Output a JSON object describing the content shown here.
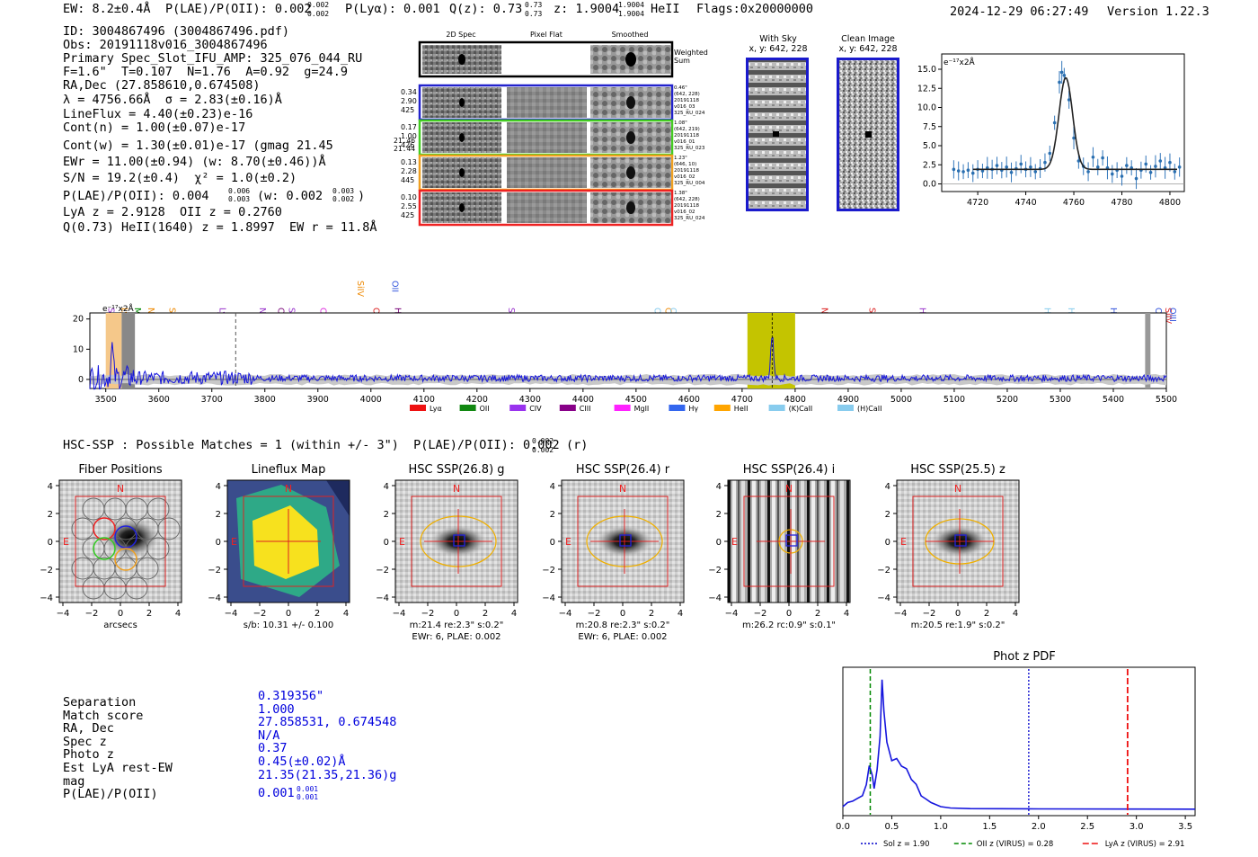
{
  "header": {
    "ew": "EW: 8.2±0.4Å",
    "plae": "P(LAE)/P(OII): 0.002",
    "plae_hi": "0.002",
    "plae_lo": "0.002",
    "plya": "P(Lyα): 0.001",
    "qz": "Q(z): 0.73",
    "qz_hi": "0.73",
    "qz_lo": "0.73",
    "z": "z: 1.9004",
    "z_hi": "1.9004",
    "z_lo": "1.9004",
    "z_line": "HeII",
    "flags": "Flags:0x20000000",
    "timestamp": "2024-12-29 06:27:49",
    "version": "Version 1.22.3"
  },
  "info": {
    "lines": [
      "ID: 3004867496 (3004867496.pdf)",
      "Obs: 20191118v016_3004867496",
      "Primary Spec_Slot_IFU_AMP: 325_076_044_RU",
      "F=1.6\"  T=0.107  N=1.76  A=0.92  g=24.9",
      "RA,Dec (27.858610,0.674508)",
      "λ = 4756.66Å  σ = 2.83(±0.16)Å",
      "LineFlux = 4.40(±0.23)e-16",
      "Cont(n) = 1.00(±0.07)e-17"
    ],
    "contw": "Cont(w) = 1.30(±0.01)e-17 (gmag 21.45",
    "contw_hi": "21.46",
    "contw_lo": "21.44",
    "ewr": "EWr = 11.00(±0.94) (w: 8.70(±0.46))Å",
    "sn": "S/N = 19.2(±0.4)  χ² = 1.0(±0.2)",
    "plae2": "P(LAE)/P(OII): 0.004",
    "plae2_hi": "0.006",
    "plae2_lo": "0.003",
    "plae2_w": "(w: 0.002",
    "plae2_w_hi": "0.003",
    "plae2_w_lo": "0.002",
    "lya_z": "LyA z = 2.9128  OII z = 0.2760",
    "q_line": "Q(0.73) HeII(1640) z = 1.8997  EW r = 11.8Å"
  },
  "cutouts": {
    "col_titles": [
      "2D Spec",
      "Pixel Flat",
      "Smoothed"
    ],
    "weighted_label": "Weighted Sum",
    "rows": [
      {
        "nums": [
          "0.34",
          "2.90",
          "425"
        ],
        "meta": [
          "0.46\"",
          "(642, 228)",
          "20191118",
          "v016_03",
          "325_RU_024"
        ],
        "color": "#2222cc"
      },
      {
        "nums": [
          "0.17",
          "1.00",
          "426"
        ],
        "meta": [
          "1.08\"",
          "(642, 219)",
          "20191118",
          "v016_01",
          "325_RU_023"
        ],
        "color": "#44cc22"
      },
      {
        "nums": [
          "0.13",
          "2.28",
          "445"
        ],
        "meta": [
          "1.23\"",
          "(646, 10)",
          "20191118",
          "v016_02",
          "325_RU_004"
        ],
        "color": "#f0a020"
      },
      {
        "nums": [
          "0.10",
          "2.55",
          "425"
        ],
        "meta": [
          "1.38\"",
          "(642, 228)",
          "20191118",
          "v016_02",
          "325_RU_024"
        ],
        "color": "#ee2222"
      }
    ]
  },
  "sky": {
    "with_sky_title": "With Sky",
    "with_sky_xy": "x, y: 642, 228",
    "clean_title": "Clean Image",
    "clean_xy": "x, y: 642, 228"
  },
  "zoom_plot": {
    "unit_label": "e⁻¹⁷x2Å",
    "x_ticks": [
      "4720",
      "4740",
      "4760",
      "4780",
      "4800"
    ],
    "y_ticks": [
      "0.0",
      "2.5",
      "5.0",
      "7.5",
      "10.0",
      "12.5",
      "15.0"
    ]
  },
  "spectrum": {
    "unit_label": "e⁻¹⁷x2Å",
    "x_ticks": [
      "3500",
      "3600",
      "3700",
      "3800",
      "3900",
      "4000",
      "4100",
      "4200",
      "4300",
      "4400",
      "4500",
      "4600",
      "4700",
      "4800",
      "4900",
      "5000",
      "5100",
      "5200",
      "5300",
      "5400",
      "5500"
    ],
    "y_ticks": [
      "0",
      "10",
      "20"
    ],
    "line_labels": [
      {
        "t": "SiIV",
        "c": "#9933cc"
      },
      {
        "t": "Lyα",
        "c": "#ee8800"
      },
      {
        "t": "MgII",
        "c": "#008800"
      },
      {
        "t": "NV",
        "c": "#ee8800"
      },
      {
        "t": "SiII",
        "c": "#ee8800"
      },
      {
        "t": "Lyα",
        "c": "#9933cc"
      },
      {
        "t": "NV",
        "c": "#9933cc"
      },
      {
        "t": "CIV",
        "c": "#770077"
      },
      {
        "t": "SiII",
        "c": "#9933cc"
      },
      {
        "t": "CII",
        "c": "#dd22dd"
      },
      {
        "t": "SiIV",
        "c": "#ee8800"
      },
      {
        "t": "OVI",
        "c": "#dd2222"
      },
      {
        "t": "OII",
        "c": "#3355dd"
      },
      {
        "t": "HeII",
        "c": "#770077"
      },
      {
        "t": "SiIV",
        "c": "#9933cc"
      },
      {
        "t": "OII",
        "c": "#88ccee"
      },
      {
        "t": "CIV",
        "c": "#ee8800"
      },
      {
        "t": "OII",
        "c": "#88ccee"
      },
      {
        "t": "NV",
        "c": "#dd2222"
      },
      {
        "t": "SiII",
        "c": "#dd2222"
      },
      {
        "t": "HeII",
        "c": "#9933cc"
      },
      {
        "t": "Hγ",
        "c": "#88ccee"
      },
      {
        "t": "Hγ",
        "c": "#88ccee"
      },
      {
        "t": "Hβ",
        "c": "#3355dd"
      },
      {
        "t": "OIII",
        "c": "#3355dd"
      },
      {
        "t": "SiIV",
        "c": "#dd2222"
      },
      {
        "t": "OIII",
        "c": "#3355dd"
      }
    ],
    "legend": [
      {
        "t": "Lyα",
        "c": "#ee1111"
      },
      {
        "t": "OII",
        "c": "#118811"
      },
      {
        "t": "CIV",
        "c": "#9933ee"
      },
      {
        "t": "CIII",
        "c": "#880088"
      },
      {
        "t": "MgII",
        "c": "#ff22ff"
      },
      {
        "t": "Hγ",
        "c": "#3366ee"
      },
      {
        "t": "HeII",
        "c": "#ffa500"
      },
      {
        "t": "(K)CaII",
        "c": "#88ccee"
      },
      {
        "t": "(H)CaII",
        "c": "#88ccee"
      }
    ]
  },
  "hsc": {
    "title": "HSC-SSP : Possible Matches = 1 (within +/- 3\")  P(LAE)/P(OII): 0.002",
    "title_hi": "0.002",
    "title_lo": "0.002",
    "title_suffix": "(r)",
    "panels": [
      {
        "title": "Fiber Positions",
        "cap1": "arcsecs",
        "cap2": ""
      },
      {
        "title": "Lineflux Map",
        "cap1": "s/b: 10.31 +/- 0.100",
        "cap2": ""
      },
      {
        "title": "HSC SSP(26.8) g",
        "cap1": "m:21.4  re:2.3\"  s:0.2\"",
        "cap2": "EWr: 6, PLAE: 0.002"
      },
      {
        "title": "HSC SSP(26.4) r",
        "cap1": "m:20.8  re:2.3\"  s:0.2\"",
        "cap2": "EWr: 6, PLAE: 0.002"
      },
      {
        "title": "HSC SSP(26.4) i",
        "cap1": "m:26.2 rc:0.9\"  s:0.1\"",
        "cap2": ""
      },
      {
        "title": "HSC SSP(25.5) z",
        "cap1": "m:20.5  re:1.9\"  s:0.2\"",
        "cap2": ""
      }
    ],
    "ticks": [
      "−4",
      "−2",
      "0",
      "2",
      "4"
    ],
    "y_ticks": [
      "4",
      "2",
      "0",
      "−2",
      "−4"
    ],
    "north": "N",
    "east": "E"
  },
  "match": {
    "labels": [
      "Separation",
      "Match score",
      "RA, Dec",
      "Spec z",
      "Photo z",
      "Est LyA rest-EW",
      "mag",
      "P(LAE)/P(OII)"
    ],
    "values": [
      "0.319356\"",
      "1.000",
      "27.858531, 0.674548",
      "N/A",
      "0.37",
      "0.45(±0.02)Å",
      "21.35(21.35,21.36)g"
    ],
    "plae": "0.001",
    "plae_hi": "0.001",
    "plae_lo": "0.001"
  },
  "photz": {
    "title": "Phot z PDF",
    "x_ticks": [
      "0.0",
      "0.5",
      "1.0",
      "1.5",
      "2.0",
      "2.5",
      "3.0",
      "3.5"
    ],
    "legend": [
      {
        "t": "Sol z = 1.90",
        "c": "#0000cc"
      },
      {
        "t": "OII z (VIRUS) = 0.28",
        "c": "#008800"
      },
      {
        "t": "LyA z (VIRUS) = 2.91",
        "c": "#ee1111"
      }
    ],
    "sol_z": 1.9,
    "oii_z": 0.28,
    "lya_z": 2.91
  },
  "chart_data": [
    {
      "type": "line",
      "title": "Zoomed emission line",
      "ylabel": "e⁻¹⁷x2Å",
      "xlim": [
        4705,
        4806
      ],
      "ylim": [
        -1,
        17
      ],
      "gaussian": {
        "center": 4756.66,
        "sigma": 2.83,
        "amplitude": 12.0,
        "continuum": 1.9
      },
      "points": [
        [
          4710,
          1.9
        ],
        [
          4712,
          1.7
        ],
        [
          4714,
          1.6
        ],
        [
          4716,
          1.8
        ],
        [
          4718,
          1.4
        ],
        [
          4720,
          1.9
        ],
        [
          4722,
          1.7
        ],
        [
          4724,
          2.1
        ],
        [
          4726,
          1.9
        ],
        [
          4728,
          2.4
        ],
        [
          4730,
          1.8
        ],
        [
          4732,
          2.2
        ],
        [
          4734,
          1.5
        ],
        [
          4736,
          2.0
        ],
        [
          4738,
          2.6
        ],
        [
          4740,
          1.9
        ],
        [
          4742,
          2.2
        ],
        [
          4744,
          1.6
        ],
        [
          4746,
          2.0
        ],
        [
          4748,
          2.8
        ],
        [
          4750,
          4.0
        ],
        [
          4752,
          8.0
        ],
        [
          4754,
          13.3
        ],
        [
          4755,
          14.6
        ],
        [
          4756,
          14.2
        ],
        [
          4758,
          11.0
        ],
        [
          4760,
          6.0
        ],
        [
          4762,
          3.0
        ],
        [
          4764,
          2.3
        ],
        [
          4766,
          1.6
        ],
        [
          4768,
          3.5
        ],
        [
          4770,
          2.2
        ],
        [
          4772,
          3.4
        ],
        [
          4774,
          2.1
        ],
        [
          4776,
          1.3
        ],
        [
          4778,
          1.8
        ],
        [
          4780,
          1.0
        ],
        [
          4782,
          2.4
        ],
        [
          4784,
          2.1
        ],
        [
          4786,
          0.7
        ],
        [
          4788,
          1.8
        ],
        [
          4790,
          2.6
        ],
        [
          4792,
          1.5
        ],
        [
          4794,
          2.3
        ],
        [
          4796,
          3.0
        ],
        [
          4798,
          2.1
        ],
        [
          4800,
          2.8
        ],
        [
          4802,
          1.6
        ],
        [
          4804,
          2.2
        ]
      ]
    },
    {
      "type": "line",
      "title": "Full spectrum",
      "xlabel": "",
      "ylabel": "e⁻¹⁷x2Å",
      "xlim": [
        3470,
        5500
      ],
      "ylim": [
        -3,
        22
      ],
      "highlight_ranges": [
        [
          3500,
          3530
        ],
        [
          4710,
          4800
        ]
      ],
      "emission_line": 4756.66
    },
    {
      "type": "line",
      "title": "Phot z PDF",
      "xlim": [
        0,
        3.6
      ],
      "points": [
        [
          0.0,
          0.02
        ],
        [
          0.05,
          0.05
        ],
        [
          0.1,
          0.06
        ],
        [
          0.15,
          0.08
        ],
        [
          0.2,
          0.1
        ],
        [
          0.24,
          0.18
        ],
        [
          0.27,
          0.32
        ],
        [
          0.3,
          0.25
        ],
        [
          0.32,
          0.18
        ],
        [
          0.35,
          0.3
        ],
        [
          0.38,
          0.55
        ],
        [
          0.4,
          0.95
        ],
        [
          0.42,
          0.7
        ],
        [
          0.45,
          0.5
        ],
        [
          0.5,
          0.35
        ],
        [
          0.55,
          0.38
        ],
        [
          0.6,
          0.3
        ],
        [
          0.65,
          0.28
        ],
        [
          0.7,
          0.22
        ],
        [
          0.75,
          0.16
        ],
        [
          0.8,
          0.1
        ],
        [
          0.85,
          0.07
        ],
        [
          0.9,
          0.05
        ],
        [
          1.0,
          0.02
        ],
        [
          1.1,
          0.01
        ],
        [
          1.3,
          0.005
        ],
        [
          2.0,
          0.003
        ],
        [
          3.0,
          0.002
        ],
        [
          3.6,
          0.001
        ]
      ]
    }
  ]
}
